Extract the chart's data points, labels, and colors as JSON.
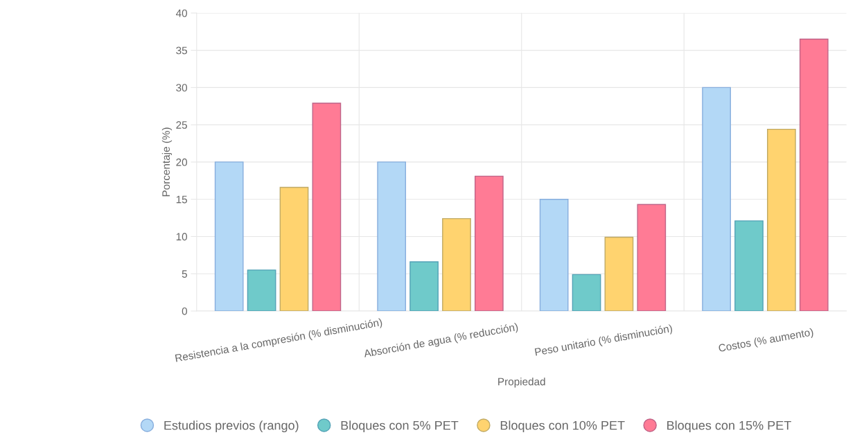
{
  "chart_data": {
    "type": "bar",
    "xlabel": "Propiedad",
    "ylabel": "Porcentaje (%)",
    "categories": [
      "Resistencia a la compresión (% disminución)",
      "Absorción de agua (% reducción)",
      "Peso unitario (% disminución)",
      "Costos (% aumento)"
    ],
    "series": [
      {
        "name": "Estudios previos (rango)",
        "color": "#b3d8f6",
        "values": [
          20,
          20,
          15,
          30
        ]
      },
      {
        "name": "Bloques con 5% PET",
        "color": "#6fcaca",
        "values": [
          5.5,
          6.6,
          4.9,
          12.1
        ]
      },
      {
        "name": "Bloques con 10% PET",
        "color": "#ffd36f",
        "values": [
          16.6,
          12.4,
          9.9,
          24.4
        ]
      },
      {
        "name": "Bloques con 15% PET",
        "color": "#ff7b95",
        "values": [
          27.9,
          18.1,
          14.3,
          36.5
        ]
      }
    ],
    "ylim": [
      0,
      40
    ],
    "yticks": [
      0,
      5,
      10,
      15,
      20,
      25,
      30,
      35,
      40
    ],
    "grid": true,
    "legend": "bottom"
  }
}
